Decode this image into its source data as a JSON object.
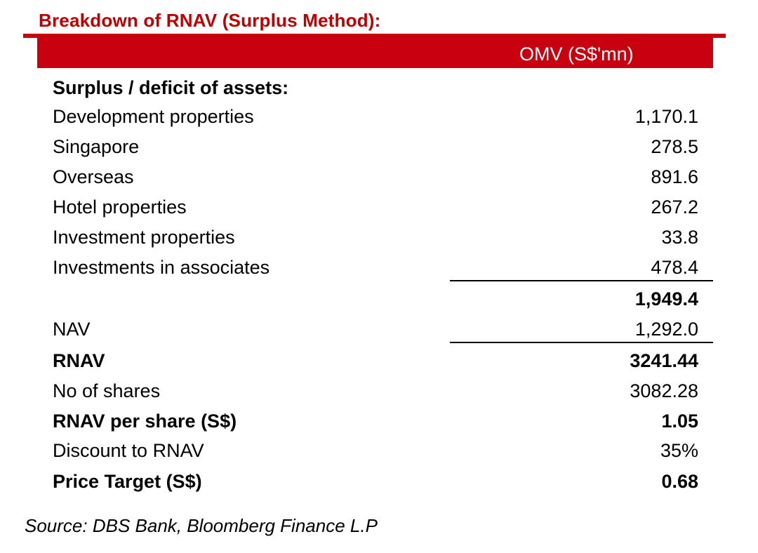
{
  "title": "Breakdown of RNAV (Surplus Method):",
  "column_header": "OMV (S$'mn)",
  "rows": [
    {
      "label": "Surplus / deficit of assets:",
      "value": ""
    },
    {
      "label": "Development properties",
      "value": "1,170.1"
    },
    {
      "label": "Singapore",
      "value": "278.5"
    },
    {
      "label": "Overseas",
      "value": "891.6"
    },
    {
      "label": "Hotel properties",
      "value": "267.2"
    },
    {
      "label": "Investment properties",
      "value": "33.8"
    },
    {
      "label": "Investments in associates",
      "value": "478.4"
    },
    {
      "label": "",
      "value": "1,949.4"
    },
    {
      "label": "NAV",
      "value": "1,292.0"
    },
    {
      "label": "RNAV",
      "value": "3241.44"
    },
    {
      "label": "No of shares",
      "value": "3082.28"
    },
    {
      "label": "RNAV per share (S$)",
      "value": "1.05"
    },
    {
      "label": "Discount to RNAV",
      "value": "35%"
    },
    {
      "label": "Price Target (S$)",
      "value": "0.68"
    }
  ],
  "source": "Source: DBS Bank, Bloomberg Finance L.P",
  "colors": {
    "accent": "#c8000f",
    "title": "#c00000"
  }
}
